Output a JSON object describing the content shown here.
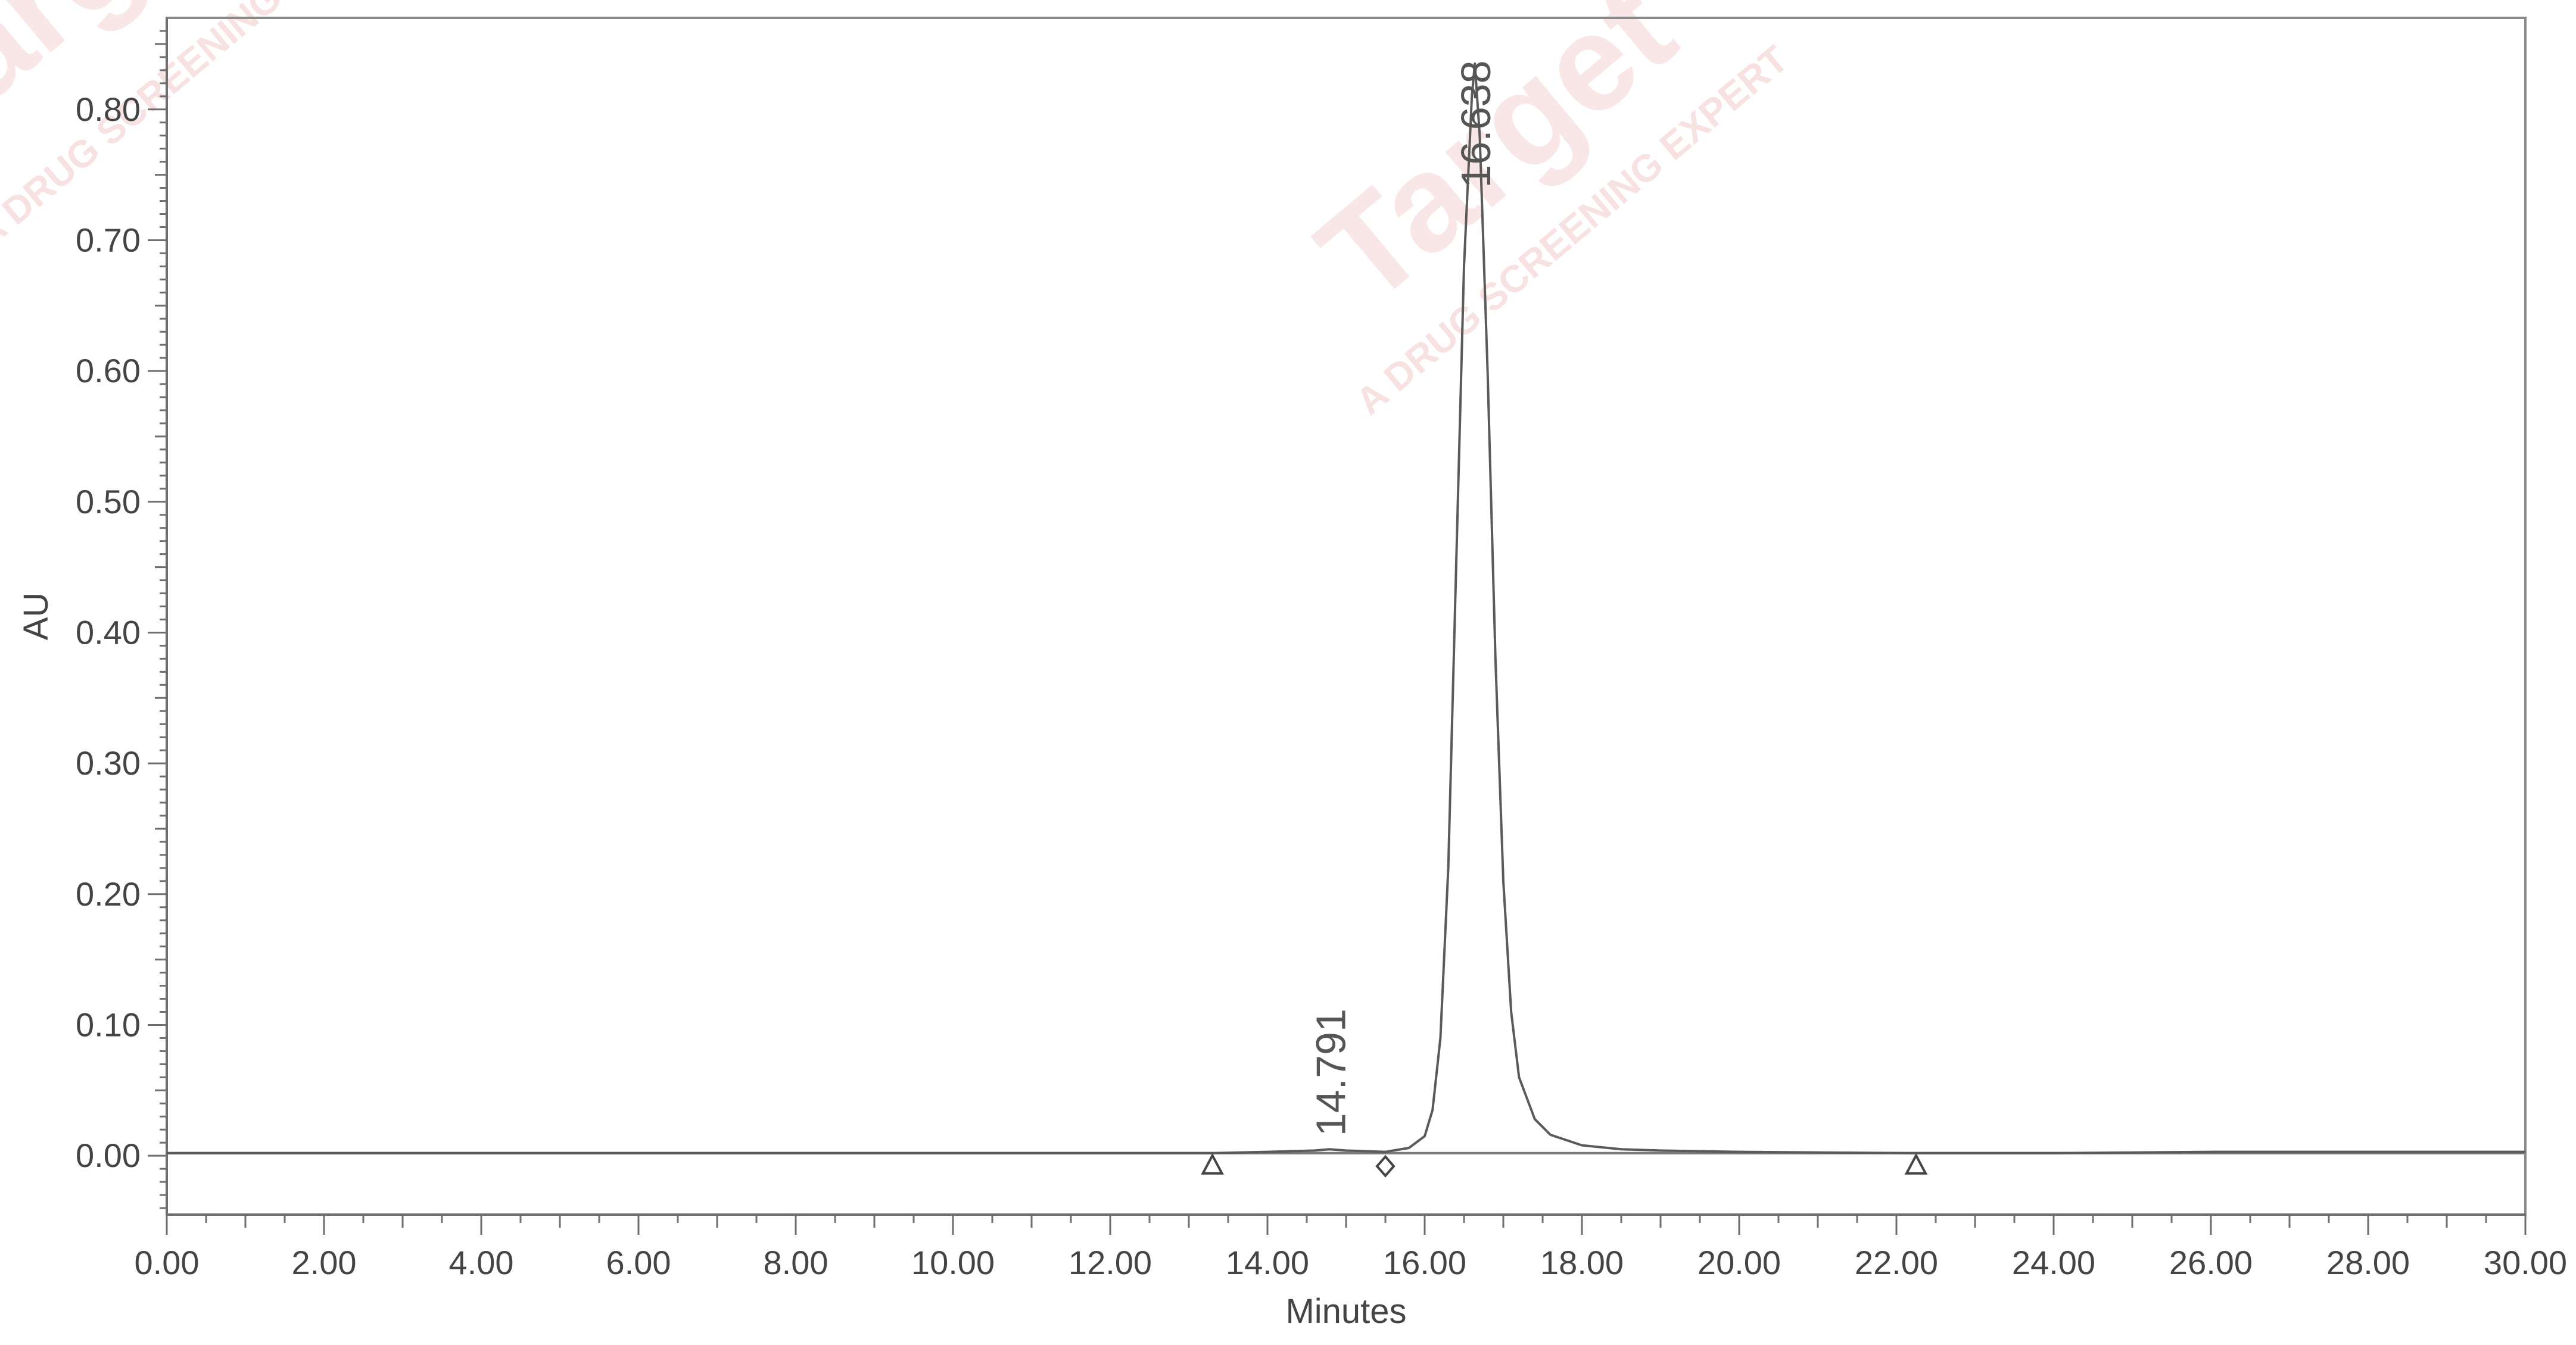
{
  "chart_data": {
    "type": "line",
    "title": "",
    "xlabel": "Minutes",
    "ylabel": "AU",
    "xlim": [
      0,
      30
    ],
    "ylim": [
      -0.045,
      0.87
    ],
    "x_ticks": [
      "0.00",
      "2.00",
      "4.00",
      "6.00",
      "8.00",
      "10.00",
      "12.00",
      "14.00",
      "16.00",
      "18.00",
      "20.00",
      "22.00",
      "24.00",
      "26.00",
      "28.00",
      "30.00"
    ],
    "y_ticks": [
      "0.00",
      "0.10",
      "0.20",
      "0.30",
      "0.40",
      "0.50",
      "0.60",
      "0.70",
      "0.80"
    ],
    "series": [
      {
        "x": [
          0.0,
          5.0,
          10.0,
          13.3,
          14.0,
          14.6,
          14.79,
          15.0,
          15.5,
          15.8,
          16.0,
          16.1,
          16.2,
          16.3,
          16.4,
          16.5,
          16.6,
          16.638,
          16.7,
          16.8,
          16.9,
          17.0,
          17.1,
          17.2,
          17.4,
          17.6,
          18.0,
          18.5,
          19.0,
          20.0,
          22.2,
          24.0,
          26.0,
          28.0,
          30.0
        ],
        "y": [
          0.002,
          0.002,
          0.002,
          0.002,
          0.003,
          0.004,
          0.005,
          0.004,
          0.003,
          0.006,
          0.015,
          0.035,
          0.09,
          0.22,
          0.45,
          0.68,
          0.81,
          0.835,
          0.78,
          0.6,
          0.38,
          0.21,
          0.11,
          0.06,
          0.028,
          0.016,
          0.008,
          0.005,
          0.004,
          0.003,
          0.002,
          0.002,
          0.003,
          0.003,
          0.003
        ]
      }
    ],
    "peak_labels": [
      {
        "x": 14.791,
        "text": "14.791"
      },
      {
        "x": 16.638,
        "text": "16.638"
      }
    ],
    "integration_markers": [
      {
        "x": 13.3,
        "shape": "triangle"
      },
      {
        "x": 15.5,
        "shape": "diamond"
      },
      {
        "x": 22.25,
        "shape": "triangle"
      }
    ],
    "grid": false
  },
  "watermarks": [
    {
      "text": "Target",
      "kind": "big"
    },
    {
      "text": "A DRUG SCREENING EXPERT",
      "kind": "small"
    }
  ]
}
